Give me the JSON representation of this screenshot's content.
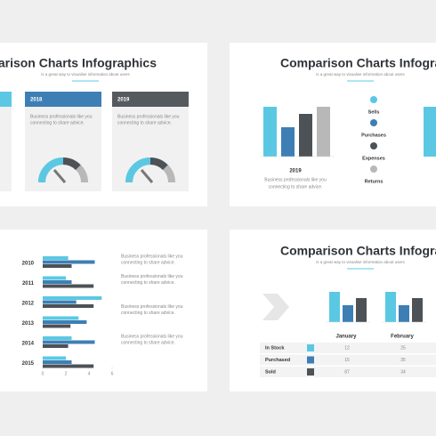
{
  "slides": [
    {
      "title": "Comparison Charts Infographics",
      "subtitle": "is a great way to visualise information about users",
      "cards": [
        {
          "year": "2018",
          "color": "#3d7fb5",
          "text": [
            "Business professionals like you",
            "connecting to share advice."
          ]
        },
        {
          "year": "2019",
          "color": "#555a5f",
          "text": [
            "Business professionals like you",
            "connecting to share advice."
          ]
        }
      ]
    },
    {
      "title": "Comparison Charts Infographics",
      "subtitle": "is a great way to visualise information about users",
      "chart": {
        "type": "bar",
        "values": [
          56,
          33,
          48,
          56
        ],
        "colors": [
          "#5bc8e3",
          "#3d7fb5",
          "#4d5257",
          "#b8b8b8"
        ],
        "ylim": [
          0,
          60
        ]
      },
      "caption_title": "2019",
      "caption": [
        "Business professionals like you",
        "connecting to share advice."
      ],
      "legend": [
        {
          "name": "Sells",
          "color": "#5bc8e3"
        },
        {
          "name": "Purchases",
          "color": "#3d7fb5"
        },
        {
          "name": "Expenses",
          "color": "#4d5257"
        },
        {
          "name": "Returns",
          "color": "#b8b8b8"
        }
      ]
    },
    {
      "chart": {
        "type": "bar",
        "orientation": "horizontal",
        "categories": [
          "2010",
          "2011",
          "2012",
          "2013",
          "2014",
          "2015"
        ],
        "series": [
          {
            "color": "#5bc8e3",
            "values": [
              2.2,
              2.0,
              5.1,
              3.1,
              2.5,
              2.0
            ]
          },
          {
            "color": "#3d7fb5",
            "values": [
              4.5,
              2.5,
              2.9,
              3.8,
              4.5,
              2.5
            ]
          },
          {
            "color": "#4d5257",
            "values": [
              2.5,
              4.4,
              4.4,
              2.4,
              2.2,
              4.4
            ]
          }
        ],
        "xlim": [
          0,
          6
        ],
        "xticks": [
          0,
          2,
          4,
          6
        ]
      },
      "notes": [
        [
          "Business professionals like you",
          "connecting to share advice."
        ],
        [
          "Business professionals like you",
          "connecting to share advice."
        ],
        [
          "Business professionals like you",
          "connecting to share advice."
        ],
        [
          "Business professionals like you",
          "connecting to share advice."
        ]
      ]
    },
    {
      "title": "Comparison Charts Infographics",
      "subtitle": "is a great way to visualise information about users",
      "charts": [
        {
          "type": "bar",
          "label": "January",
          "values": [
            34,
            19,
            27
          ]
        },
        {
          "type": "bar",
          "label": "February",
          "values": [
            34,
            19,
            27
          ]
        }
      ],
      "colors": [
        "#5bc8e3",
        "#3d7fb5",
        "#4d5257"
      ],
      "ylim": [
        0,
        40
      ],
      "table": {
        "rows": [
          {
            "label": "In Stock",
            "values": [
              12,
              25
            ]
          },
          {
            "label": "Purchased",
            "values": [
              15,
              35
            ]
          },
          {
            "label": "Sold",
            "values": [
              87,
              34
            ]
          }
        ]
      }
    }
  ]
}
